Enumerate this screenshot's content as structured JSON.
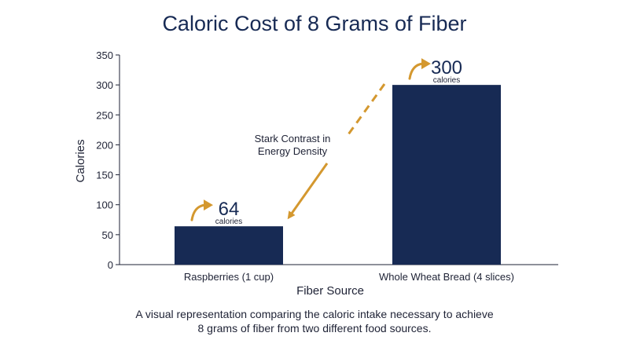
{
  "chart_data": {
    "type": "bar",
    "title": "Caloric Cost of 8 Grams of Fiber",
    "xlabel": "Fiber Source",
    "ylabel": "Calories",
    "categories": [
      "Raspberries (1 cup)",
      "Whole Wheat Bread (4 slices)"
    ],
    "values": [
      64,
      300
    ],
    "ylim": [
      0,
      350
    ],
    "yticks": [
      0,
      50,
      100,
      150,
      200,
      250,
      300,
      350
    ],
    "grid": false,
    "legend": "none",
    "data_labels": [
      {
        "value": "64",
        "unit": "calories"
      },
      {
        "value": "300",
        "unit": "calories"
      }
    ],
    "annotation": {
      "line1": "Stark Contrast in",
      "line2": "Energy Density"
    },
    "colors": {
      "bar": "#172a54",
      "accent": "#d4982f",
      "text": "#1e2235",
      "title": "#172a54"
    }
  },
  "caption": {
    "line1": "A visual representation comparing the caloric intake necessary to achieve",
    "line2": "8 grams of fiber from two different food sources."
  }
}
